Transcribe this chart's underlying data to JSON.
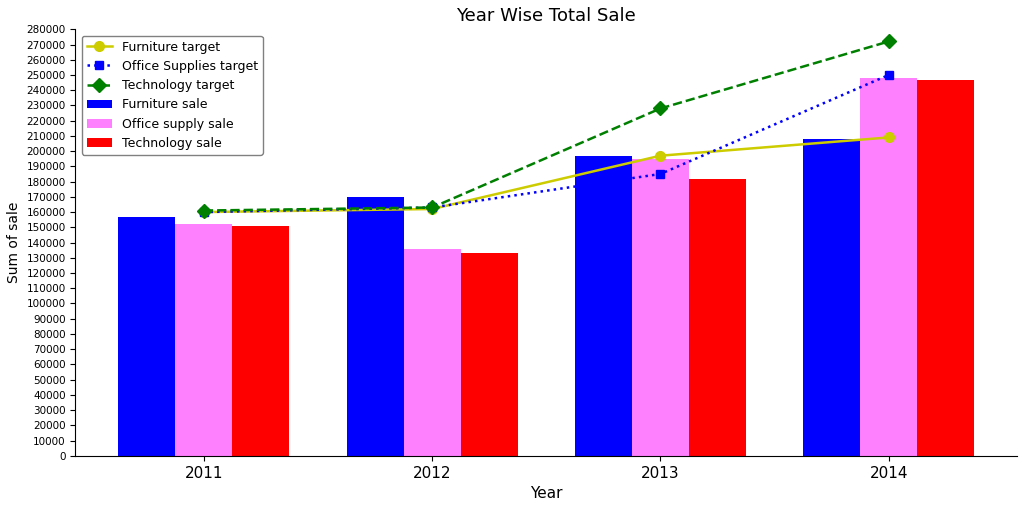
{
  "years": [
    2011,
    2012,
    2013,
    2014
  ],
  "furniture_sale": [
    157000,
    170000,
    197000,
    208000
  ],
  "office_supply_sale": [
    152000,
    136000,
    195000,
    248000
  ],
  "technology_sale": [
    151000,
    133000,
    182000,
    247000
  ],
  "furniture_target": [
    160000,
    162000,
    197000,
    209000
  ],
  "office_supplies_target": [
    160000,
    163000,
    185000,
    250000
  ],
  "technology_target": [
    161000,
    163000,
    228000,
    272000
  ],
  "bar_colors": [
    "blue",
    "#ff80ff",
    "red"
  ],
  "furniture_target_color": "#cccc00",
  "office_supplies_target_color": "blue",
  "technology_target_color": "green",
  "title": "Year Wise Total Sale",
  "xlabel": "Year",
  "ylabel": "Sum of sale",
  "ylim": [
    0,
    280000
  ],
  "ytick_step": 10000,
  "bar_width": 0.25,
  "legend_labels": [
    "Furniture target",
    "Office Supplies target",
    "Technology target",
    "Furniture sale",
    "Office supply sale",
    "Technology sale"
  ]
}
